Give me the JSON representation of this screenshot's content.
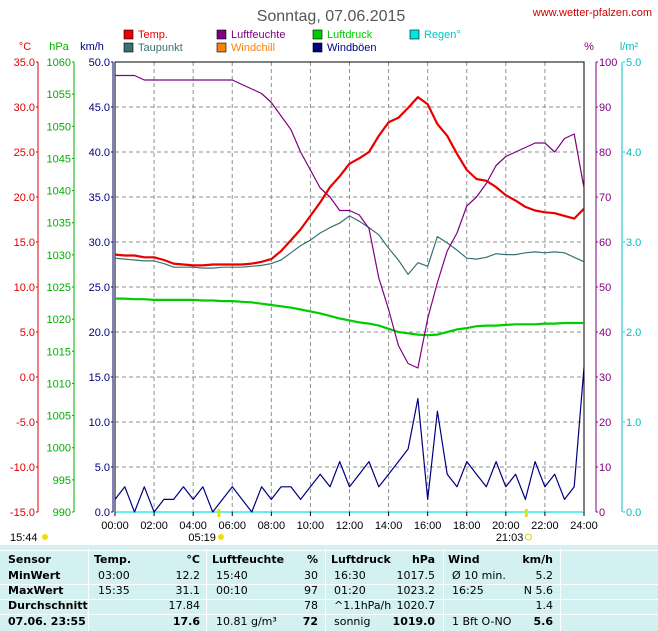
{
  "header": {
    "title": "Sonntag, 07.06.2015",
    "site": "www.wetter-pfalzen.com"
  },
  "legend": [
    {
      "name": "Temp.",
      "color": "#e80000"
    },
    {
      "name": "Taupunkt",
      "color": "#3a7070"
    },
    {
      "name": "Luftfeuchte",
      "color": "#800080"
    },
    {
      "name": "Windchill",
      "color": "#ff8000"
    },
    {
      "name": "Luftdruck",
      "color": "#00cc00"
    },
    {
      "name": "Windböen",
      "color": "#000080"
    },
    {
      "name": "Regen°",
      "color": "#00e6e6"
    }
  ],
  "unit_labels": {
    "temp": "°C",
    "pressure": "hPa",
    "wind": "km/h",
    "humidity": "%",
    "rain": "l/m²"
  },
  "sun": {
    "sunrise_time": "05:19",
    "sunset_time": "21:03",
    "day_length": "15:44"
  },
  "chart_data": {
    "type": "line",
    "title": "Sonntag, 07.06.2015",
    "x_hours": [
      0,
      0.5,
      1,
      1.5,
      2,
      2.5,
      3,
      3.5,
      4,
      4.5,
      5,
      5.5,
      6,
      6.5,
      7,
      7.5,
      8,
      8.5,
      9,
      9.5,
      10,
      10.5,
      11,
      11.5,
      12,
      12.5,
      13,
      13.5,
      14,
      14.5,
      15,
      15.5,
      16,
      16.5,
      17,
      17.5,
      18,
      18.5,
      19,
      19.5,
      20,
      20.5,
      21,
      21.5,
      22,
      22.5,
      23,
      23.5,
      24
    ],
    "x_tick_labels": [
      "00:00",
      "02:00",
      "04:00",
      "06:00",
      "08:00",
      "10:00",
      "12:00",
      "14:00",
      "16:00",
      "18:00",
      "20:00",
      "22:00",
      "24:00"
    ],
    "axes": {
      "temp": {
        "label": "°C",
        "range": [
          -15,
          35
        ],
        "ticks": [
          "35.0",
          "30.0",
          "25.0",
          "20.0",
          "15.0",
          "10.0",
          "5.0",
          "0.0",
          "-5.0",
          "-10.0",
          "-15.0"
        ]
      },
      "pressure": {
        "label": "hPa",
        "range": [
          990,
          1060
        ],
        "ticks": [
          "1060",
          "1055",
          "1050",
          "1045",
          "1040",
          "1035",
          "1030",
          "1025",
          "1020",
          "1015",
          "1010",
          "1005",
          "1000",
          "995",
          "990"
        ]
      },
      "wind": {
        "label": "km/h",
        "range": [
          0,
          50
        ],
        "ticks": [
          "50.0",
          "45.0",
          "40.0",
          "35.0",
          "30.0",
          "25.0",
          "20.0",
          "15.0",
          "10.0",
          "5.0",
          "0.0"
        ]
      },
      "humidity": {
        "label": "%",
        "range": [
          0,
          100
        ],
        "ticks": [
          "100",
          "90",
          "80",
          "70",
          "60",
          "50",
          "40",
          "30",
          "20",
          "10",
          "0"
        ]
      },
      "rain": {
        "label": "l/m²",
        "range": [
          0,
          5
        ],
        "ticks": [
          "5.0",
          "4.0",
          "3.0",
          "2.0",
          "1.0",
          "0.0"
        ]
      }
    },
    "grid": true,
    "series": [
      {
        "name": "Temp.",
        "axis": "temp",
        "values": [
          13.6,
          13.5,
          13.5,
          13.3,
          13.3,
          13.0,
          12.6,
          12.5,
          12.4,
          12.4,
          12.5,
          12.5,
          12.5,
          12.5,
          12.6,
          12.8,
          13.1,
          14.0,
          15.2,
          16.4,
          17.9,
          19.4,
          21.1,
          22.3,
          23.7,
          24.3,
          25.0,
          26.8,
          28.3,
          28.8,
          29.9,
          31.1,
          30.3,
          28.1,
          26.8,
          24.8,
          23.0,
          22.0,
          21.8,
          21.1,
          20.2,
          19.6,
          18.9,
          18.5,
          18.3,
          18.2,
          17.9,
          17.6,
          18.7
        ]
      },
      {
        "name": "Taupunkt",
        "axis": "temp",
        "values": [
          13.2,
          13.1,
          13.0,
          12.9,
          12.9,
          12.6,
          12.2,
          12.2,
          12.2,
          12.1,
          12.1,
          12.2,
          12.2,
          12.2,
          12.3,
          12.4,
          12.6,
          13.0,
          13.8,
          14.6,
          15.2,
          16.0,
          16.6,
          17.1,
          17.9,
          17.3,
          16.6,
          15.8,
          14.3,
          13.0,
          11.4,
          12.7,
          12.3,
          15.6,
          14.9,
          14.1,
          13.2,
          13.1,
          13.3,
          13.7,
          13.6,
          13.6,
          13.8,
          13.9,
          13.8,
          13.9,
          13.8,
          13.3,
          12.8
        ]
      },
      {
        "name": "Luftfeuchte",
        "axis": "humidity",
        "values": [
          97,
          97,
          97,
          96,
          96,
          96,
          96,
          96,
          96,
          96,
          96,
          96,
          96,
          95,
          94,
          93,
          91,
          88,
          85,
          80,
          76,
          72,
          70,
          67,
          67,
          66,
          63,
          52,
          45,
          37,
          33,
          32,
          43,
          51,
          58,
          62,
          68,
          70,
          73,
          77,
          79,
          80,
          81,
          82,
          82,
          80,
          83,
          84,
          72
        ]
      },
      {
        "name": "Luftdruck",
        "axis": "pressure",
        "values": [
          1023.2,
          1023.2,
          1023.1,
          1023.1,
          1023.0,
          1023.0,
          1023.0,
          1023.0,
          1023.0,
          1022.9,
          1022.9,
          1022.8,
          1022.8,
          1022.7,
          1022.6,
          1022.4,
          1022.2,
          1022.0,
          1021.8,
          1021.5,
          1021.2,
          1020.9,
          1020.5,
          1020.1,
          1019.8,
          1019.5,
          1019.3,
          1019.0,
          1018.5,
          1018.0,
          1017.8,
          1017.6,
          1017.5,
          1017.6,
          1018.0,
          1018.4,
          1018.6,
          1018.9,
          1019.0,
          1019.0,
          1019.1,
          1019.2,
          1019.2,
          1019.2,
          1019.3,
          1019.3,
          1019.4,
          1019.4,
          1019.4
        ]
      },
      {
        "name": "Windböen",
        "axis": "wind",
        "values": [
          1.4,
          2.8,
          0.0,
          2.8,
          0.0,
          1.4,
          1.4,
          2.8,
          1.4,
          2.8,
          0.0,
          1.4,
          2.8,
          1.4,
          0.0,
          2.8,
          1.4,
          2.8,
          2.8,
          1.4,
          2.8,
          4.2,
          2.8,
          5.6,
          2.8,
          4.2,
          5.6,
          2.8,
          4.2,
          5.6,
          7.0,
          12.6,
          1.4,
          11.2,
          4.2,
          2.8,
          5.6,
          4.2,
          2.8,
          5.6,
          2.8,
          4.2,
          1.4,
          5.6,
          2.8,
          4.2,
          1.4,
          2.8,
          16.1
        ]
      },
      {
        "name": "Regen°",
        "axis": "rain",
        "values": [
          0,
          0,
          0,
          0,
          0,
          0,
          0,
          0,
          0,
          0,
          0,
          0,
          0,
          0,
          0,
          0,
          0,
          0,
          0,
          0,
          0,
          0,
          0,
          0,
          0,
          0,
          0,
          0,
          0,
          0,
          0,
          0,
          0,
          0,
          0,
          0,
          0,
          0,
          0,
          0,
          0,
          0,
          0,
          0,
          0,
          0,
          0,
          0,
          0
        ]
      }
    ]
  },
  "table": {
    "headers": {
      "sensor": "Sensor",
      "temp": "Temp.",
      "temp_unit": "°C",
      "hum": "Luftfeuchte",
      "hum_unit": "%",
      "press": "Luftdruck",
      "press_unit": "hPa",
      "wind": "Wind",
      "wind_unit": "km/h"
    },
    "rows": [
      {
        "label": "MinWert",
        "t_time": "03:00",
        "t_val": "12.2",
        "h_time": "15:40",
        "h_val": "30",
        "p_time": "16:30",
        "p_val": "1017.5",
        "w_time": "Ø 10 min.",
        "w_val": "5.2"
      },
      {
        "label": "MaxWert",
        "t_time": "15:35",
        "t_val": "31.1",
        "h_time": "00:10",
        "h_val": "97",
        "p_time": "01:20",
        "p_val": "1023.2",
        "w_time": "16:25",
        "w_val": "N 5.6"
      },
      {
        "label": "Durchschnitt",
        "t_time": "",
        "t_val": "17.84",
        "h_time": "",
        "h_val": "78",
        "p_time": "^1.1hPa/h",
        "p_val": "1020.7",
        "w_time": "",
        "w_val": "1.4"
      },
      {
        "label": "07.06. 23:55",
        "t_time": "",
        "t_val": "17.6",
        "h_time": "10.81 g/m³",
        "h_val": "72",
        "p_time": "sonnig",
        "p_val": "1019.0",
        "w_time": "1 Bft O-NO",
        "w_val": "5.6"
      }
    ]
  }
}
